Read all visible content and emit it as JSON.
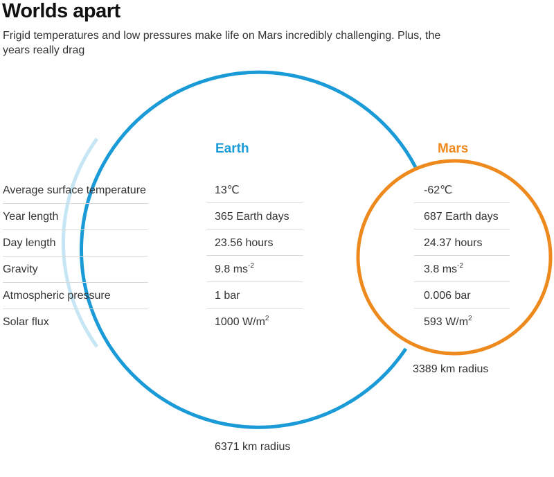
{
  "header": {
    "title": "Worlds apart",
    "subtitle": "Frigid temperatures and low pressures make life on Mars incredibly challenging. Plus, the years really drag"
  },
  "planets": {
    "earth": {
      "name": "Earth",
      "radius_label": "6371 km radius",
      "color": "#1a9ad6"
    },
    "mars": {
      "name": "Mars",
      "radius_label": "3389 km radius",
      "color": "#ee8a1d"
    }
  },
  "rows": [
    {
      "label": "Average surface temperature",
      "earth": "13℃",
      "earth_sup": "",
      "mars": "-62℃",
      "mars_sup": ""
    },
    {
      "label": "Year length",
      "earth": "365 Earth days",
      "earth_sup": "",
      "mars": "687 Earth days",
      "mars_sup": ""
    },
    {
      "label": "Day length",
      "earth": "23.56 hours",
      "earth_sup": "",
      "mars": "24.37 hours",
      "mars_sup": ""
    },
    {
      "label": "Gravity",
      "earth": "9.8 ms",
      "earth_sup": "-2",
      "mars": "3.8 ms",
      "mars_sup": "-2"
    },
    {
      "label": "Atmospheric pressure",
      "earth": "1 bar",
      "earth_sup": "",
      "mars": "0.006 bar",
      "mars_sup": ""
    },
    {
      "label": "Solar flux",
      "earth": "1000 W/m",
      "earth_sup": "2",
      "mars": "593 W/m",
      "mars_sup": "2"
    }
  ]
}
